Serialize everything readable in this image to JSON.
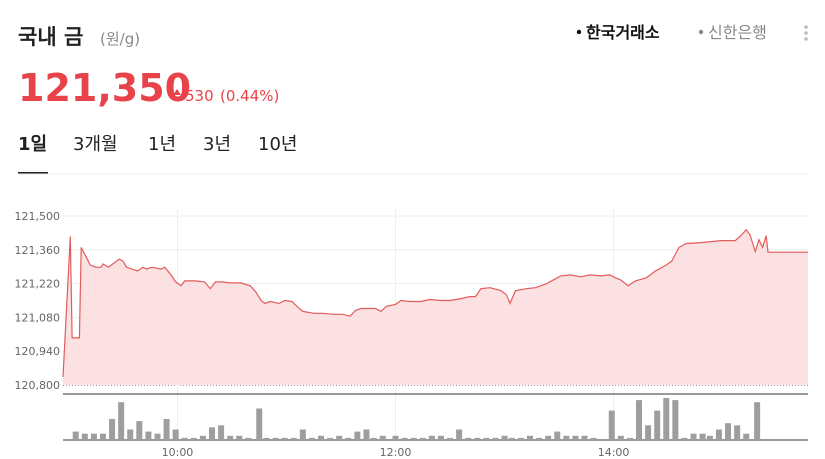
{
  "header": {
    "title": "국내 금",
    "unit": "(원/g)",
    "sources": [
      {
        "label": "한국거래소",
        "active": true
      },
      {
        "label": "신한은행",
        "active": false
      }
    ]
  },
  "quote": {
    "price": "121,350",
    "change": "530",
    "change_pct": "(0.44%)"
  },
  "tabs": [
    "1일",
    "3개월",
    "1년",
    "3년",
    "10년"
  ],
  "active_tab": 0,
  "chart_data": [
    {
      "type": "line",
      "color": "#e35b5b",
      "area_color": "#fbe1e1",
      "grid": true,
      "x": [
        537,
        541,
        542,
        546,
        547,
        549,
        552,
        555,
        558,
        559,
        562,
        565,
        568,
        570,
        572,
        575,
        578,
        581,
        583,
        586,
        591,
        593,
        596,
        599,
        602,
        604,
        610,
        615,
        618,
        621,
        624,
        629,
        635,
        640,
        643,
        646,
        648,
        651,
        656,
        659,
        663,
        667,
        669,
        675,
        680,
        686,
        691,
        695,
        698,
        701,
        709,
        712,
        715,
        720,
        723,
        728,
        734,
        739,
        745,
        750,
        756,
        761,
        764,
        767,
        772,
        778,
        781,
        783,
        786,
        792,
        797,
        803,
        808,
        811,
        816,
        822,
        827,
        833,
        838,
        841,
        844,
        848,
        852,
        858,
        863,
        869,
        872,
        876,
        880,
        888,
        899,
        907,
        910,
        913,
        915,
        918,
        920,
        922,
        924,
        925,
        947
      ],
      "values": [
        120833,
        121415,
        120995,
        120995,
        121370,
        121341,
        121297,
        121288,
        121288,
        121301,
        121288,
        121305,
        121321,
        121313,
        121288,
        121280,
        121272,
        121288,
        121280,
        121288,
        121280,
        121288,
        121260,
        121227,
        121211,
        121231,
        121231,
        121227,
        121199,
        121227,
        121227,
        121223,
        121223,
        121211,
        121187,
        121150,
        121138,
        121146,
        121138,
        121150,
        121146,
        121117,
        121105,
        121097,
        121097,
        121093,
        121093,
        121085,
        121109,
        121117,
        121117,
        121105,
        121126,
        121134,
        121150,
        121146,
        121146,
        121154,
        121150,
        121150,
        121158,
        121166,
        121166,
        121199,
        121203,
        121191,
        121174,
        121138,
        121191,
        121199,
        121203,
        121219,
        121240,
        121252,
        121256,
        121248,
        121256,
        121252,
        121256,
        121244,
        121235,
        121211,
        121231,
        121244,
        121272,
        121297,
        121313,
        121370,
        121386,
        121390,
        121398,
        121398,
        121419,
        121443,
        121423,
        121353,
        121402,
        121370,
        121419,
        121350,
        121350
      ],
      "xlim": [
        537,
        947
      ],
      "ylim": [
        120800,
        121500
      ],
      "yticks": [
        {
          "value": 121500,
          "label": "121,500"
        },
        {
          "value": 121360,
          "label": "121,360"
        },
        {
          "value": 121220,
          "label": "121,220"
        },
        {
          "value": 121080,
          "label": "121,080"
        },
        {
          "value": 120940,
          "label": "120,940"
        },
        {
          "value": 120800,
          "label": "120,800"
        }
      ],
      "xticks": [
        {
          "value": 600,
          "label": "10:00"
        },
        {
          "value": 720,
          "label": "12:00"
        },
        {
          "value": 840,
          "label": "14:00"
        }
      ]
    },
    {
      "type": "bar",
      "color": "#9e9e9e",
      "x": [
        544,
        549,
        554,
        559,
        564,
        569,
        574,
        579,
        584,
        589,
        594,
        599,
        604,
        609,
        614,
        619,
        624,
        629,
        634,
        639,
        645,
        649,
        654,
        659,
        664,
        669,
        674,
        679,
        684,
        689,
        694,
        699,
        704,
        708,
        713,
        720,
        725,
        730,
        735,
        740,
        745,
        750,
        755,
        760,
        765,
        770,
        775,
        780,
        784,
        789,
        794,
        799,
        804,
        809,
        814,
        819,
        824,
        829,
        839,
        844,
        849,
        854,
        859,
        864,
        869,
        874,
        879,
        884,
        889,
        893,
        898,
        903,
        908,
        913,
        919
      ],
      "values": [
        8,
        6,
        6,
        6,
        20,
        36,
        10,
        18,
        8,
        6,
        20,
        10,
        2,
        2,
        4,
        12,
        14,
        4,
        4,
        2,
        30,
        2,
        2,
        2,
        2,
        10,
        2,
        4,
        2,
        4,
        2,
        8,
        10,
        2,
        4,
        4,
        2,
        2,
        2,
        4,
        4,
        2,
        10,
        2,
        2,
        2,
        2,
        4,
        2,
        2,
        4,
        2,
        4,
        8,
        4,
        4,
        4,
        2,
        28,
        4,
        2,
        38,
        14,
        28,
        40,
        38,
        2,
        6,
        6,
        4,
        10,
        16,
        14,
        6,
        36
      ]
    }
  ]
}
